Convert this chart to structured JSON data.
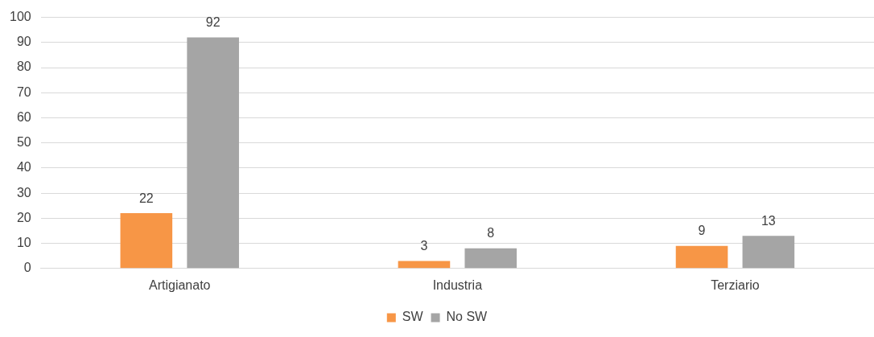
{
  "chart_data": {
    "type": "bar",
    "categories": [
      "Artigianato",
      "Industria",
      "Terziario"
    ],
    "series": [
      {
        "name": "SW",
        "color": "#f79646",
        "values": [
          22,
          3,
          9
        ]
      },
      {
        "name": "No SW",
        "color": "#a5a5a5",
        "values": [
          92,
          8,
          13
        ]
      }
    ],
    "ylim": [
      0,
      100
    ],
    "yticks": [
      0,
      10,
      20,
      30,
      40,
      50,
      60,
      70,
      80,
      90,
      100
    ],
    "grid": "y",
    "legend": "bottom",
    "data_labels": true
  }
}
